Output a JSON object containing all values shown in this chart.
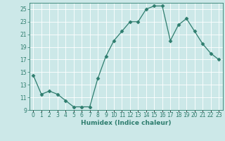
{
  "x": [
    0,
    1,
    2,
    3,
    4,
    5,
    6,
    7,
    8,
    9,
    10,
    11,
    12,
    13,
    14,
    15,
    16,
    17,
    18,
    19,
    20,
    21,
    22,
    23
  ],
  "y": [
    14.5,
    11.5,
    12.0,
    11.5,
    10.5,
    9.5,
    9.5,
    9.5,
    14.0,
    17.5,
    20.0,
    21.5,
    23.0,
    23.0,
    25.0,
    25.5,
    25.5,
    20.0,
    22.5,
    23.5,
    21.5,
    19.5,
    18.0,
    17.0
  ],
  "xlabel": "Humidex (Indice chaleur)",
  "ylim": [
    9,
    26
  ],
  "xlim": [
    -0.5,
    23.5
  ],
  "yticks": [
    9,
    11,
    13,
    15,
    17,
    19,
    21,
    23,
    25
  ],
  "xtick_labels": [
    "0",
    "1",
    "2",
    "3",
    "4",
    "5",
    "6",
    "7",
    "8",
    "9",
    "10",
    "11",
    "12",
    "13",
    "14",
    "15",
    "16",
    "17",
    "18",
    "19",
    "20",
    "21",
    "22",
    "23"
  ],
  "line_color": "#2e7d6e",
  "marker": "D",
  "marker_size": 2.5,
  "bg_color": "#cce8e8",
  "grid_color": "#ffffff",
  "label_fontsize": 6.5,
  "tick_fontsize": 5.5
}
